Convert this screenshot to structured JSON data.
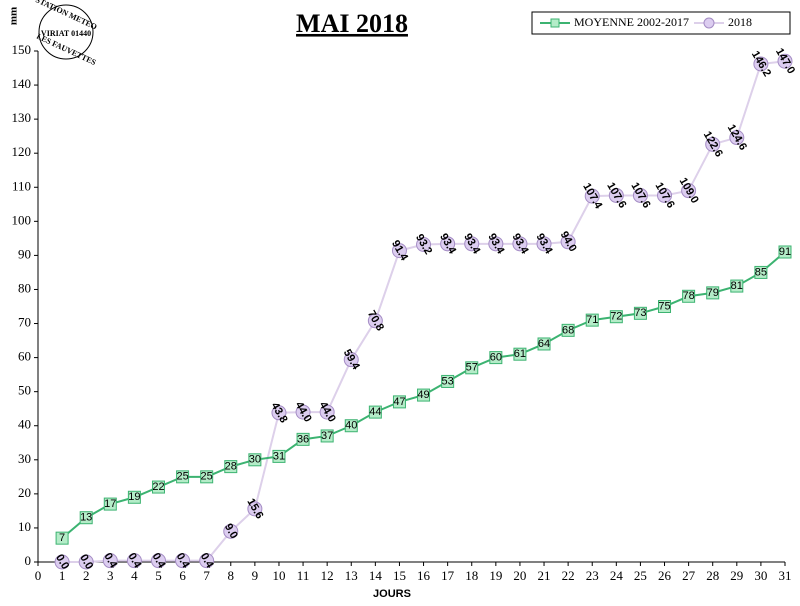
{
  "chart_data": {
    "type": "line",
    "title": "MAI 2018",
    "logo": [
      "STATION METEO",
      "VIRIAT 01440",
      "LES FAUVETTES"
    ],
    "y_label": "mm",
    "x_label": "JOURS",
    "x": [
      1,
      2,
      3,
      4,
      5,
      6,
      7,
      8,
      9,
      10,
      11,
      12,
      13,
      14,
      15,
      16,
      17,
      18,
      19,
      20,
      21,
      22,
      23,
      24,
      25,
      26,
      27,
      28,
      29,
      30,
      31
    ],
    "series": [
      {
        "name": "MOYENNE 2002-2017",
        "color": "#3cb371",
        "marker": "square",
        "marker_fill": "#b4ecc8",
        "values": [
          7,
          13,
          17,
          19,
          22,
          25,
          25,
          28,
          30,
          31,
          36,
          37,
          40,
          44,
          47,
          49,
          53,
          57,
          60,
          61,
          64,
          68,
          71,
          72,
          73,
          75,
          78,
          79,
          81,
          85,
          91
        ]
      },
      {
        "name": "2018",
        "color": "#ddd0ea",
        "marker": "circle",
        "marker_fill": "#dccdf0",
        "values": [
          0.0,
          0.0,
          0.4,
          0.4,
          0.4,
          0.4,
          0.4,
          9.0,
          15.6,
          43.8,
          44.0,
          44.0,
          59.4,
          70.8,
          91.4,
          93.2,
          93.4,
          93.4,
          93.4,
          93.4,
          93.4,
          94.0,
          107.4,
          107.6,
          107.6,
          107.6,
          109.0,
          122.6,
          124.6,
          146.2,
          147.0
        ],
        "value_labels": [
          "0.0",
          "0.0",
          "0.4",
          "0.4",
          "0.4",
          "0.4",
          "0.4",
          "9.0",
          "15.6",
          "43.8",
          "44.0",
          "44.0",
          "59.4",
          "70.8",
          "91.4",
          "93.2",
          "93.4",
          "93.4",
          "93.4",
          "93.4",
          "93.4",
          "94.0",
          "107.4",
          "107.6",
          "107.6",
          "107.6",
          "109.0",
          "122.6",
          "124.6",
          "146.2",
          "147.0"
        ]
      }
    ],
    "xlim": [
      0,
      31
    ],
    "xticks": [
      0,
      1,
      2,
      3,
      4,
      5,
      6,
      7,
      8,
      9,
      10,
      11,
      12,
      13,
      14,
      15,
      16,
      17,
      18,
      19,
      20,
      21,
      22,
      23,
      24,
      25,
      26,
      27,
      28,
      29,
      30,
      31
    ],
    "ylim": [
      0,
      150
    ],
    "yticks": [
      0,
      10,
      20,
      30,
      40,
      50,
      60,
      70,
      80,
      90,
      100,
      110,
      120,
      130,
      140,
      150
    ],
    "legend": "upper right"
  }
}
